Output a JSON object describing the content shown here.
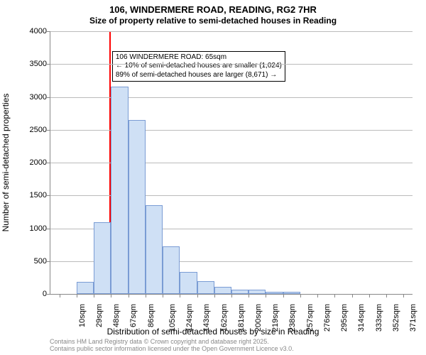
{
  "chart": {
    "type": "histogram",
    "title_line1": "106, WINDERMERE ROAD, READING, RG2 7HR",
    "title_line2": "Size of property relative to semi-detached houses in Reading",
    "title_fontsize": 13,
    "subtitle_fontsize": 12,
    "xlabel": "Distribution of semi-detached houses by size in Reading",
    "ylabel": "Number of semi-detached properties",
    "label_fontsize": 12,
    "tick_fontsize": 11,
    "background_color": "#ffffff",
    "grid_color": "#bbbbbb",
    "axis_color": "#888888",
    "bar_fill": "#cfe0f5",
    "bar_border": "#7a9cd4",
    "refline_color": "#ff0000",
    "refline_value": 65,
    "xlim": [
      0,
      400
    ],
    "ylim": [
      0,
      4000
    ],
    "ytick_step": 500,
    "xtick_start": 10,
    "xtick_step": 19,
    "xtick_count": 21,
    "xtick_suffix": "sqm",
    "bar_width_units": 19,
    "categories_start": 10,
    "values": [
      0,
      180,
      1090,
      3160,
      2650,
      1350,
      720,
      330,
      200,
      110,
      60,
      60,
      30,
      30,
      0,
      0,
      0,
      0,
      0,
      0,
      0
    ],
    "annotation": {
      "line1": "106 WINDERMERE ROAD: 65sqm",
      "line2": "← 10% of semi-detached houses are smaller (1,024)",
      "line3": "89% of semi-detached houses are larger (8,671) →",
      "fontsize": 10,
      "border_color": "#000000",
      "bg_color": "#ffffff"
    },
    "footer_line1": "Contains HM Land Registry data © Crown copyright and database right 2025.",
    "footer_line2": "Contains public sector information licensed under the Open Government Licence v3.0.",
    "footer_color": "#888888",
    "footer_fontsize": 9
  }
}
